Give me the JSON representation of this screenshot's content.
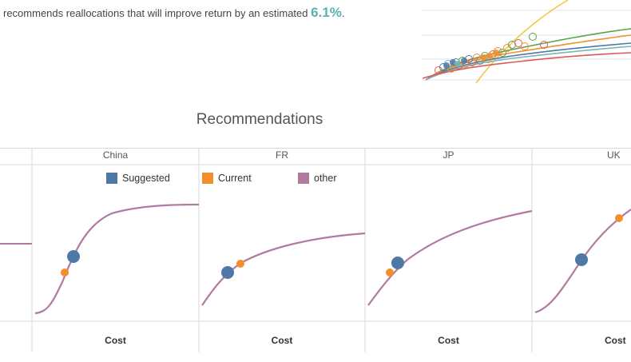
{
  "intro": {
    "text": "recommends reallocations that will improve return by an estimated",
    "value": "6.1%",
    "suffix": "."
  },
  "title": "Recommendations",
  "facets": [
    "China",
    "FR",
    "JP",
    "UK"
  ],
  "x_axis_label": "Cost",
  "legend": [
    {
      "label": "Suggested",
      "color": "#4e79a7"
    },
    {
      "label": "Current",
      "color": "#f28e2b"
    },
    {
      "label": "other",
      "color": "#b07aa1"
    }
  ],
  "colors": {
    "suggested": "#4e79a7",
    "current": "#f28e2b",
    "other": "#b07aa1",
    "grid": "#d9d9d9"
  }
}
